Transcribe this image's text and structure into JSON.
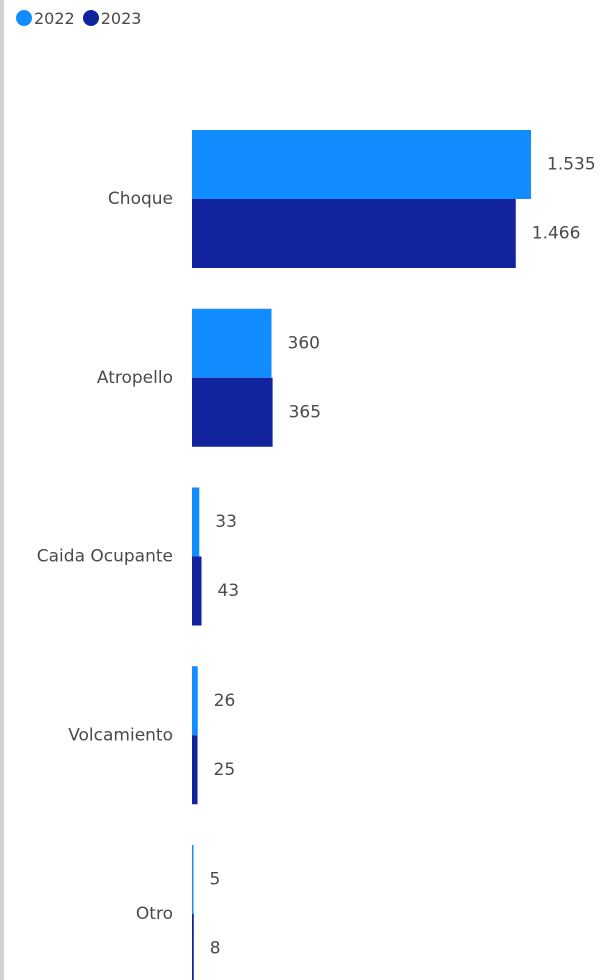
{
  "colors": {
    "series_2022": "#118DFF",
    "series_2023": "#12239E"
  },
  "chart_data": {
    "type": "bar",
    "orientation": "horizontal",
    "categories": [
      "Choque",
      "Atropello",
      "Caida Ocupante",
      "Volcamiento",
      "Otro"
    ],
    "series": [
      {
        "name": "2022",
        "values": [
          1535,
          360,
          33,
          26,
          5
        ],
        "labels": [
          "1.535",
          "360",
          "33",
          "26",
          "5"
        ],
        "color": "#118DFF"
      },
      {
        "name": "2023",
        "values": [
          1466,
          365,
          43,
          25,
          8
        ],
        "labels": [
          "1.466",
          "365",
          "43",
          "25",
          "8"
        ],
        "color": "#12239E"
      }
    ],
    "title": "",
    "xlabel": "",
    "ylabel": "",
    "xlim": [
      0,
      1535
    ],
    "legend_position": "top-left",
    "grid": false
  }
}
